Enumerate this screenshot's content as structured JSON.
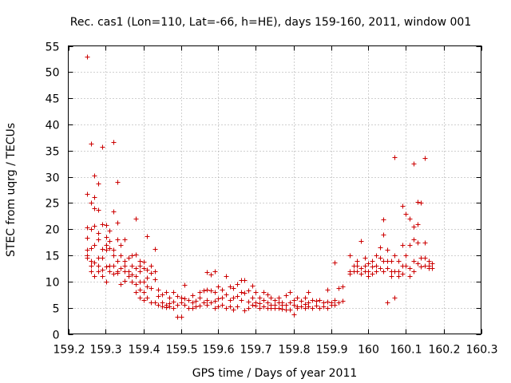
{
  "chart_data": {
    "type": "scatter",
    "title": "Rec. cas1 (Lon=110, Lat=-66, h=HE), days 159-160, 2011, window 001",
    "xlabel": "GPS time / Days of year 2011",
    "ylabel": "STEC from uqrg / TECUs",
    "xlim": [
      159.2,
      160.3
    ],
    "ylim": [
      0,
      55
    ],
    "x_ticks": [
      "159.2",
      "159.3",
      "159.4",
      "159.5",
      "159.6",
      "159.7",
      "159.8",
      "159.9",
      "160",
      "160.1",
      "160.2",
      "160.3"
    ],
    "y_ticks": [
      "0",
      "5",
      "10",
      "15",
      "20",
      "25",
      "30",
      "35",
      "40",
      "45",
      "50",
      "55"
    ],
    "grid": true,
    "marker": "plus",
    "color": "#cc0000",
    "points": [
      [
        159.25,
        53.0
      ],
      [
        159.25,
        26.8
      ],
      [
        159.25,
        20.3
      ],
      [
        159.25,
        18.4
      ],
      [
        159.25,
        16.0
      ],
      [
        159.25,
        15.0
      ],
      [
        159.25,
        14.6
      ],
      [
        159.26,
        36.3
      ],
      [
        159.26,
        25.0
      ],
      [
        159.26,
        20.0
      ],
      [
        159.26,
        16.4
      ],
      [
        159.26,
        14.0
      ],
      [
        159.26,
        13.0
      ],
      [
        159.26,
        12.0
      ],
      [
        159.27,
        30.3
      ],
      [
        159.27,
        26.2
      ],
      [
        159.27,
        24.0
      ],
      [
        159.27,
        20.6
      ],
      [
        159.27,
        17.0
      ],
      [
        159.27,
        13.6
      ],
      [
        159.27,
        11.0
      ],
      [
        159.28,
        28.7
      ],
      [
        159.28,
        23.7
      ],
      [
        159.28,
        19.3
      ],
      [
        159.28,
        18.0
      ],
      [
        159.28,
        14.5
      ],
      [
        159.28,
        13.0
      ],
      [
        159.28,
        12.0
      ],
      [
        159.29,
        35.7
      ],
      [
        159.29,
        21.0
      ],
      [
        159.29,
        16.3
      ],
      [
        159.29,
        14.6
      ],
      [
        159.29,
        12.2
      ],
      [
        159.29,
        11.0
      ],
      [
        159.3,
        20.8
      ],
      [
        159.3,
        18.5
      ],
      [
        159.3,
        17.0
      ],
      [
        159.3,
        16.0
      ],
      [
        159.3,
        12.8
      ],
      [
        159.3,
        10.0
      ],
      [
        159.31,
        19.8
      ],
      [
        159.31,
        17.8
      ],
      [
        159.31,
        16.4
      ],
      [
        159.31,
        13.0
      ],
      [
        159.31,
        12.0
      ],
      [
        159.32,
        36.6
      ],
      [
        159.32,
        23.4
      ],
      [
        159.32,
        16.0
      ],
      [
        159.32,
        15.0
      ],
      [
        159.32,
        13.0
      ],
      [
        159.32,
        11.5
      ],
      [
        159.33,
        29.0
      ],
      [
        159.33,
        21.3
      ],
      [
        159.33,
        18.0
      ],
      [
        159.33,
        14.0
      ],
      [
        159.33,
        12.0
      ],
      [
        159.33,
        11.7
      ],
      [
        159.34,
        17.0
      ],
      [
        159.34,
        15.0
      ],
      [
        159.34,
        12.5
      ],
      [
        159.34,
        9.5
      ],
      [
        159.35,
        18.0
      ],
      [
        159.35,
        14.0
      ],
      [
        159.35,
        13.0
      ],
      [
        159.35,
        12.0
      ],
      [
        159.35,
        10.2
      ],
      [
        159.36,
        14.5
      ],
      [
        159.36,
        12.0
      ],
      [
        159.36,
        11.0
      ],
      [
        159.37,
        15.0
      ],
      [
        159.37,
        13.0
      ],
      [
        159.37,
        11.4
      ],
      [
        159.37,
        10.0
      ],
      [
        159.38,
        22.0
      ],
      [
        159.38,
        15.2
      ],
      [
        159.38,
        12.5
      ],
      [
        159.38,
        11.0
      ],
      [
        159.38,
        9.5
      ],
      [
        159.38,
        8.0
      ],
      [
        159.39,
        14.0
      ],
      [
        159.39,
        13.0
      ],
      [
        159.39,
        12.0
      ],
      [
        159.39,
        10.0
      ],
      [
        159.39,
        8.5
      ],
      [
        159.39,
        7.0
      ],
      [
        159.4,
        13.8
      ],
      [
        159.4,
        12.5
      ],
      [
        159.4,
        10.0
      ],
      [
        159.4,
        8.0
      ],
      [
        159.4,
        6.5
      ],
      [
        159.41,
        18.6
      ],
      [
        159.41,
        12.3
      ],
      [
        159.41,
        10.7
      ],
      [
        159.41,
        9.0
      ],
      [
        159.41,
        7.0
      ],
      [
        159.42,
        13.0
      ],
      [
        159.42,
        11.7
      ],
      [
        159.42,
        8.7
      ],
      [
        159.42,
        6.0
      ],
      [
        159.43,
        16.3
      ],
      [
        159.43,
        12.0
      ],
      [
        159.43,
        10.5
      ],
      [
        159.43,
        6.0
      ],
      [
        159.44,
        8.5
      ],
      [
        159.44,
        7.3
      ],
      [
        159.44,
        5.5
      ],
      [
        159.45,
        7.5
      ],
      [
        159.45,
        6.0
      ],
      [
        159.45,
        5.3
      ],
      [
        159.46,
        8.0
      ],
      [
        159.46,
        5.6
      ],
      [
        159.46,
        5.1
      ],
      [
        159.47,
        7.0
      ],
      [
        159.47,
        5.8
      ],
      [
        159.47,
        5.3
      ],
      [
        159.48,
        8.0
      ],
      [
        159.48,
        6.2
      ],
      [
        159.48,
        5.0
      ],
      [
        159.49,
        7.3
      ],
      [
        159.49,
        5.5
      ],
      [
        159.49,
        3.3
      ],
      [
        159.5,
        7.0
      ],
      [
        159.5,
        6.0
      ],
      [
        159.5,
        3.2
      ],
      [
        159.51,
        9.4
      ],
      [
        159.51,
        6.8
      ],
      [
        159.51,
        5.6
      ],
      [
        159.52,
        6.5
      ],
      [
        159.52,
        5.0
      ],
      [
        159.53,
        7.4
      ],
      [
        159.53,
        6.0
      ],
      [
        159.53,
        5.0
      ],
      [
        159.54,
        6.3
      ],
      [
        159.54,
        5.2
      ],
      [
        159.55,
        8.0
      ],
      [
        159.55,
        7.0
      ],
      [
        159.55,
        5.4
      ],
      [
        159.56,
        8.3
      ],
      [
        159.56,
        6.0
      ],
      [
        159.57,
        11.8
      ],
      [
        159.57,
        8.5
      ],
      [
        159.57,
        6.5
      ],
      [
        159.57,
        5.5
      ],
      [
        159.58,
        11.3
      ],
      [
        159.58,
        8.3
      ],
      [
        159.58,
        6.0
      ],
      [
        159.59,
        12.0
      ],
      [
        159.59,
        8.0
      ],
      [
        159.59,
        6.3
      ],
      [
        159.59,
        5.0
      ],
      [
        159.6,
        9.0
      ],
      [
        159.6,
        6.8
      ],
      [
        159.6,
        5.3
      ],
      [
        159.61,
        8.4
      ],
      [
        159.61,
        7.0
      ],
      [
        159.61,
        5.5
      ],
      [
        159.62,
        11.0
      ],
      [
        159.62,
        7.5
      ],
      [
        159.62,
        5.0
      ],
      [
        159.63,
        9.0
      ],
      [
        159.63,
        6.5
      ],
      [
        159.63,
        5.3
      ],
      [
        159.64,
        8.7
      ],
      [
        159.64,
        7.0
      ],
      [
        159.64,
        4.7
      ],
      [
        159.65,
        9.5
      ],
      [
        159.65,
        7.2
      ],
      [
        159.65,
        5.3
      ],
      [
        159.66,
        10.3
      ],
      [
        159.66,
        8.0
      ],
      [
        159.66,
        6.5
      ],
      [
        159.67,
        10.3
      ],
      [
        159.67,
        7.8
      ],
      [
        159.67,
        4.5
      ],
      [
        159.68,
        8.3
      ],
      [
        159.68,
        6.2
      ],
      [
        159.68,
        5.0
      ],
      [
        159.69,
        9.2
      ],
      [
        159.69,
        7.0
      ],
      [
        159.69,
        5.5
      ],
      [
        159.7,
        8.0
      ],
      [
        159.7,
        6.0
      ],
      [
        159.7,
        5.4
      ],
      [
        159.71,
        7.0
      ],
      [
        159.71,
        5.8
      ],
      [
        159.71,
        5.0
      ],
      [
        159.72,
        8.0
      ],
      [
        159.72,
        6.5
      ],
      [
        159.72,
        5.3
      ],
      [
        159.73,
        7.5
      ],
      [
        159.73,
        6.0
      ],
      [
        159.73,
        5.0
      ],
      [
        159.74,
        7.0
      ],
      [
        159.74,
        5.6
      ],
      [
        159.74,
        5.0
      ],
      [
        159.75,
        6.5
      ],
      [
        159.75,
        5.5
      ],
      [
        159.75,
        4.9
      ],
      [
        159.76,
        7.0
      ],
      [
        159.76,
        6.0
      ],
      [
        159.76,
        5.0
      ],
      [
        159.77,
        6.0
      ],
      [
        159.77,
        5.5
      ],
      [
        159.77,
        4.8
      ],
      [
        159.78,
        7.4
      ],
      [
        159.78,
        5.6
      ],
      [
        159.78,
        4.7
      ],
      [
        159.79,
        8.0
      ],
      [
        159.79,
        6.0
      ],
      [
        159.79,
        4.7
      ],
      [
        159.8,
        6.5
      ],
      [
        159.8,
        5.5
      ],
      [
        159.8,
        3.8
      ],
      [
        159.81,
        7.0
      ],
      [
        159.81,
        5.3
      ],
      [
        159.81,
        4.9
      ],
      [
        159.82,
        6.3
      ],
      [
        159.82,
        5.2
      ],
      [
        159.83,
        7.0
      ],
      [
        159.83,
        5.7
      ],
      [
        159.83,
        4.9
      ],
      [
        159.84,
        8.0
      ],
      [
        159.84,
        6.0
      ],
      [
        159.84,
        5.3
      ],
      [
        159.85,
        6.5
      ],
      [
        159.85,
        5.0
      ],
      [
        159.86,
        6.3
      ],
      [
        159.86,
        5.4
      ],
      [
        159.87,
        6.5
      ],
      [
        159.87,
        5.0
      ],
      [
        159.88,
        6.0
      ],
      [
        159.88,
        5.3
      ],
      [
        159.89,
        8.5
      ],
      [
        159.89,
        6.2
      ],
      [
        159.89,
        5.0
      ],
      [
        159.9,
        6.0
      ],
      [
        159.9,
        5.5
      ],
      [
        159.91,
        13.7
      ],
      [
        159.91,
        6.5
      ],
      [
        159.91,
        5.6
      ],
      [
        159.92,
        8.8
      ],
      [
        159.92,
        6.0
      ],
      [
        159.93,
        9.0
      ],
      [
        159.93,
        6.3
      ],
      [
        159.95,
        15.0
      ],
      [
        159.95,
        12.0
      ],
      [
        159.95,
        11.5
      ],
      [
        159.96,
        13.0
      ],
      [
        159.96,
        12.0
      ],
      [
        159.97,
        14.0
      ],
      [
        159.97,
        13.0
      ],
      [
        159.97,
        12.0
      ],
      [
        159.98,
        17.8
      ],
      [
        159.98,
        12.5
      ],
      [
        159.98,
        11.5
      ],
      [
        159.99,
        14.5
      ],
      [
        159.99,
        13.0
      ],
      [
        159.99,
        12.0
      ],
      [
        160.0,
        13.5
      ],
      [
        160.0,
        12.0
      ],
      [
        160.0,
        11.0
      ],
      [
        160.01,
        14.0
      ],
      [
        160.01,
        12.8
      ],
      [
        160.01,
        11.5
      ],
      [
        160.02,
        15.0
      ],
      [
        160.02,
        13.0
      ],
      [
        160.02,
        12.0
      ],
      [
        160.03,
        16.5
      ],
      [
        160.03,
        14.5
      ],
      [
        160.03,
        12.5
      ],
      [
        160.04,
        21.8
      ],
      [
        160.04,
        19.0
      ],
      [
        160.04,
        14.0
      ],
      [
        160.04,
        12.0
      ],
      [
        160.05,
        16.0
      ],
      [
        160.05,
        14.0
      ],
      [
        160.05,
        12.5
      ],
      [
        160.05,
        6.0
      ],
      [
        160.06,
        14.0
      ],
      [
        160.06,
        12.0
      ],
      [
        160.06,
        11.0
      ],
      [
        160.07,
        33.8
      ],
      [
        160.07,
        15.0
      ],
      [
        160.07,
        12.0
      ],
      [
        160.07,
        7.0
      ],
      [
        160.08,
        14.0
      ],
      [
        160.08,
        12.0
      ],
      [
        160.08,
        11.0
      ],
      [
        160.09,
        24.5
      ],
      [
        160.09,
        17.0
      ],
      [
        160.09,
        13.0
      ],
      [
        160.09,
        11.5
      ],
      [
        160.1,
        23.0
      ],
      [
        160.1,
        15.0
      ],
      [
        160.1,
        13.0
      ],
      [
        160.11,
        22.0
      ],
      [
        160.11,
        17.0
      ],
      [
        160.11,
        12.5
      ],
      [
        160.11,
        11.0
      ],
      [
        160.12,
        32.6
      ],
      [
        160.12,
        20.5
      ],
      [
        160.12,
        18.0
      ],
      [
        160.12,
        14.0
      ],
      [
        160.12,
        12.0
      ],
      [
        160.13,
        25.2
      ],
      [
        160.13,
        21.0
      ],
      [
        160.13,
        17.5
      ],
      [
        160.13,
        13.5
      ],
      [
        160.14,
        25.0
      ],
      [
        160.14,
        14.5
      ],
      [
        160.14,
        12.8
      ],
      [
        160.15,
        33.6
      ],
      [
        160.15,
        17.5
      ],
      [
        160.15,
        14.5
      ],
      [
        160.15,
        13.0
      ],
      [
        160.16,
        14.0
      ],
      [
        160.16,
        13.0
      ],
      [
        160.16,
        12.5
      ],
      [
        160.17,
        13.5
      ],
      [
        160.17,
        12.5
      ]
    ]
  }
}
